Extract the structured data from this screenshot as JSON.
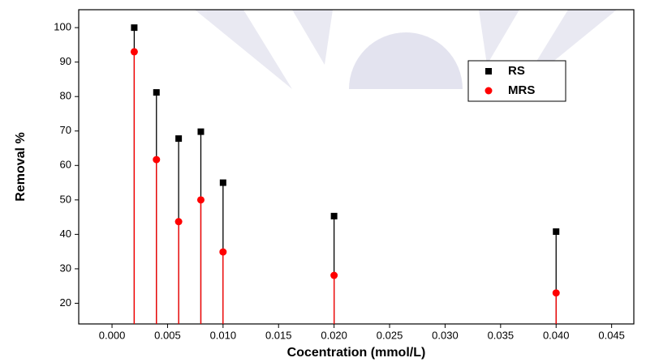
{
  "chart_data": {
    "type": "scatter",
    "drop_lines": true,
    "x_label": "Cocentration (mmol/L)",
    "y_label": "Removal %",
    "x": [
      0.002,
      0.004,
      0.006,
      0.008,
      0.01,
      0.02,
      0.04
    ],
    "series": [
      {
        "name": "RS",
        "color": "#000000",
        "marker": "square",
        "values": [
          100,
          81.2,
          67.8,
          69.8,
          55,
          45.3,
          40.8
        ]
      },
      {
        "name": "MRS",
        "color": "#ff0000",
        "marker": "circle",
        "values": [
          93,
          61.7,
          43.7,
          50,
          34.9,
          28.1,
          23
        ]
      }
    ],
    "xlim": [
      -0.003,
      0.047
    ],
    "ylim": [
      14,
      105.2
    ],
    "xticks": [
      {
        "value": 0,
        "label": "0.000"
      },
      0.005,
      {
        "value": 0.01,
        "label": "0.010"
      },
      0.015,
      {
        "value": 0.02,
        "label": "0.020"
      },
      0.025,
      {
        "value": 0.03,
        "label": "0.030"
      },
      0.035,
      {
        "value": 0.04,
        "label": "0.040"
      },
      0.045
    ],
    "yticks": [
      20,
      30,
      40,
      50,
      60,
      70,
      80,
      90,
      100
    ],
    "legend": "upper right"
  }
}
